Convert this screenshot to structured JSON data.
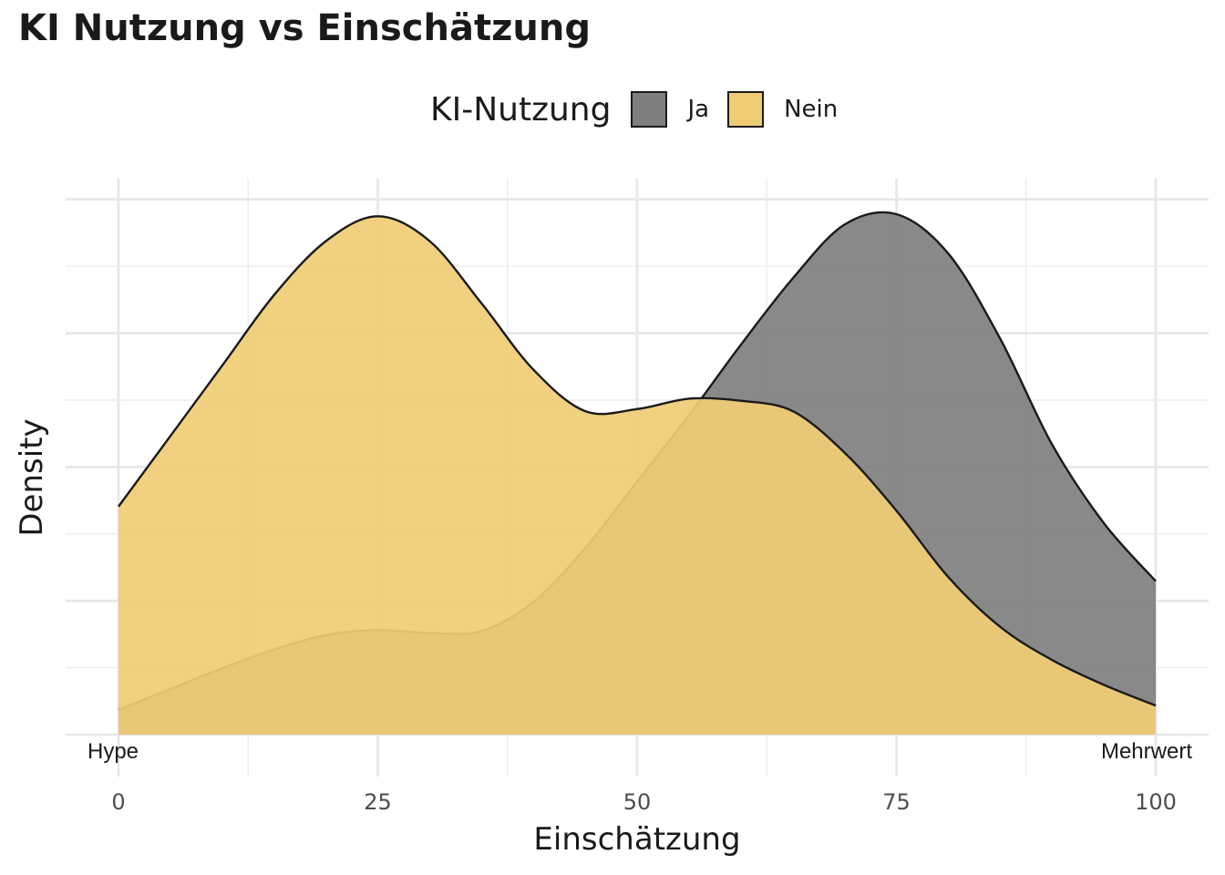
{
  "chart_data": {
    "type": "area",
    "title": "KI Nutzung vs Einschätzung",
    "xlabel": "Einschätzung",
    "ylabel": "Density",
    "xlim": [
      0,
      100
    ],
    "x_ticks": [
      "0",
      "25",
      "50",
      "75",
      "100"
    ],
    "y_ticks_shown": false,
    "grid": true,
    "legend": {
      "title": "KI-Nutzung",
      "position": "top"
    },
    "annotations": [
      {
        "text": "Hype",
        "x": 0
      },
      {
        "text": "Mehrwert",
        "x": 100
      }
    ],
    "x": [
      0,
      5,
      10,
      15,
      20,
      25,
      30,
      35,
      40,
      45,
      50,
      55,
      60,
      65,
      70,
      75,
      80,
      85,
      90,
      95,
      100
    ],
    "series": [
      {
        "name": "Ja",
        "color": "#7f7f7f",
        "values": [
          0.6,
          1.1,
          1.6,
          2.05,
          2.4,
          2.52,
          2.45,
          2.5,
          3.2,
          4.5,
          6.1,
          7.7,
          9.4,
          11.0,
          12.3,
          12.55,
          11.6,
          9.55,
          7.0,
          5.1,
          3.7
        ]
      },
      {
        "name": "Nein",
        "color": "#f0cc75",
        "values": [
          5.5,
          7.2,
          8.9,
          10.6,
          11.9,
          12.5,
          11.9,
          10.4,
          8.8,
          7.8,
          7.85,
          8.1,
          8.05,
          7.8,
          6.8,
          5.4,
          3.8,
          2.6,
          1.8,
          1.2,
          0.7
        ]
      }
    ]
  }
}
